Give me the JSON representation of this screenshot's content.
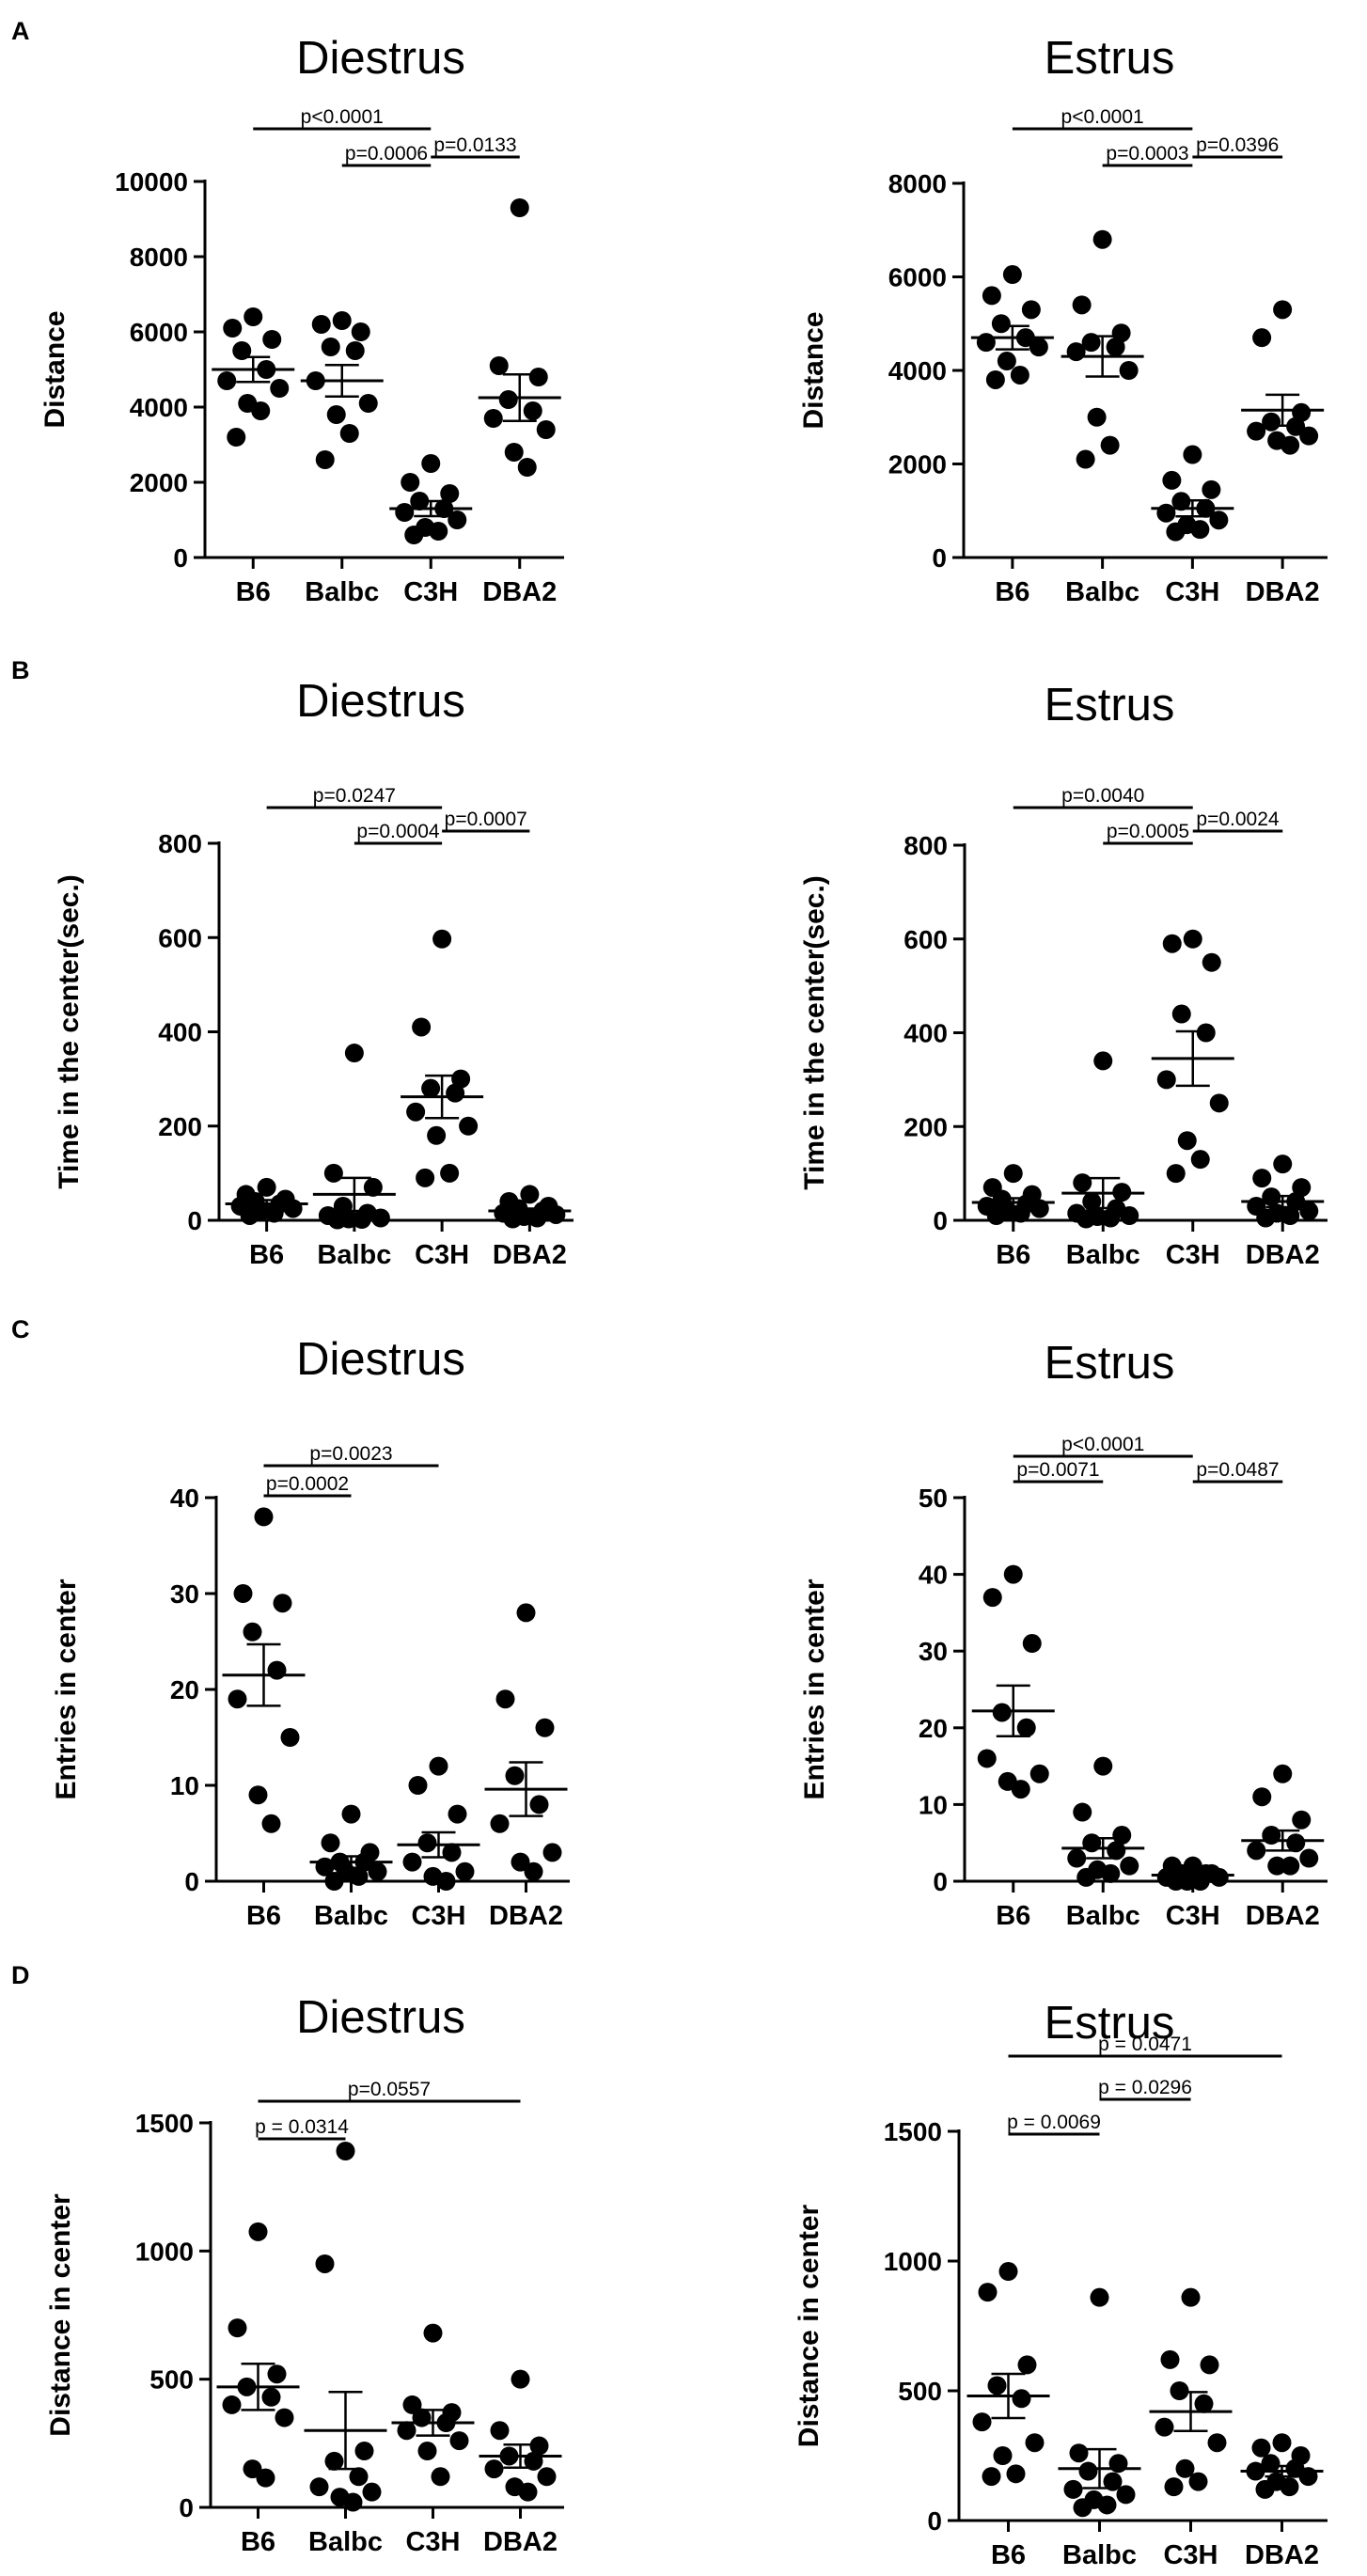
{
  "chart_data": [
    {
      "type": "scatter",
      "panel": "A",
      "title": "Diestrus",
      "ylabel": "Distance",
      "categories": [
        "B6",
        "Balbc",
        "C3H",
        "DBA2"
      ],
      "ylim": [
        0,
        10000
      ],
      "yticks": [
        0,
        2000,
        4000,
        6000,
        8000,
        10000
      ],
      "ytick_labels": [
        "0",
        "2000",
        "4000",
        "6000",
        "8000",
        "10000"
      ],
      "groups": [
        {
          "name": "B6",
          "points": [
            6400,
            6100,
            5800,
            5500,
            5000,
            4700,
            4500,
            4100,
            3900,
            3200
          ],
          "mean": 5000,
          "sem": 330
        },
        {
          "name": "Balbc",
          "points": [
            6300,
            6200,
            6000,
            5600,
            5500,
            4700,
            4100,
            3800,
            3300,
            2600
          ],
          "mean": 4700,
          "sem": 420
        },
        {
          "name": "C3H",
          "points": [
            2500,
            2000,
            1700,
            1500,
            1300,
            1200,
            1000,
            800,
            700,
            600
          ],
          "mean": 1300,
          "sem": 200
        },
        {
          "name": "DBA2",
          "points": [
            9300,
            5100,
            4800,
            4200,
            3900,
            3700,
            3400,
            2800,
            2400
          ],
          "mean": 4250,
          "sem": 620
        }
      ],
      "comparisons": [
        {
          "from": 0,
          "to": 2,
          "label": "p<0.0001"
        },
        {
          "from": 1,
          "to": 2,
          "label": "p=0.0006"
        },
        {
          "from": 2,
          "to": 3,
          "label": "p=0.0133"
        }
      ]
    },
    {
      "type": "scatter",
      "panel": "",
      "title": "Estrus",
      "ylabel": "Distance",
      "categories": [
        "B6",
        "Balbc",
        "C3H",
        "DBA2"
      ],
      "ylim": [
        0,
        8000
      ],
      "yticks": [
        0,
        2000,
        4000,
        6000,
        8000
      ],
      "ytick_labels": [
        "0",
        "2000",
        "4000",
        "6000",
        "8000"
      ],
      "groups": [
        {
          "name": "B6",
          "points": [
            6050,
            5600,
            5300,
            5000,
            4700,
            4600,
            4500,
            4200,
            3900,
            3800
          ],
          "mean": 4700,
          "sem": 250
        },
        {
          "name": "Balbc",
          "points": [
            6800,
            5400,
            4800,
            4600,
            4500,
            4400,
            4000,
            3000,
            2400,
            2100
          ],
          "mean": 4300,
          "sem": 430
        },
        {
          "name": "C3H",
          "points": [
            2200,
            1650,
            1450,
            1200,
            1050,
            950,
            800,
            700,
            600,
            550
          ],
          "mean": 1050,
          "sem": 170
        },
        {
          "name": "DBA2",
          "points": [
            5300,
            4700,
            3100,
            2900,
            2800,
            2700,
            2600,
            2500,
            2400
          ],
          "mean": 3150,
          "sem": 330
        }
      ],
      "comparisons": [
        {
          "from": 0,
          "to": 2,
          "label": "p<0.0001"
        },
        {
          "from": 1,
          "to": 2,
          "label": "p=0.0003"
        },
        {
          "from": 2,
          "to": 3,
          "label": "p=0.0396"
        }
      ]
    },
    {
      "type": "scatter",
      "panel": "B",
      "title": "Diestrus",
      "ylabel": "Time in the center(sec.)",
      "categories": [
        "B6",
        "Balbc",
        "C3H",
        "DBA2"
      ],
      "ylim": [
        0,
        800
      ],
      "yticks": [
        0,
        200,
        400,
        600,
        800
      ],
      "ytick_labels": [
        "0",
        "200",
        "400",
        "600",
        "800"
      ],
      "groups": [
        {
          "name": "B6",
          "points": [
            70,
            55,
            45,
            40,
            35,
            30,
            25,
            20,
            15,
            10
          ],
          "mean": 35,
          "sem": 8
        },
        {
          "name": "Balbc",
          "points": [
            355,
            100,
            70,
            30,
            15,
            10,
            5,
            3,
            2,
            1
          ],
          "mean": 55,
          "sem": 35
        },
        {
          "name": "C3H",
          "points": [
            597,
            410,
            300,
            280,
            270,
            230,
            200,
            180,
            100,
            90
          ],
          "mean": 262,
          "sem": 45
        },
        {
          "name": "DBA2",
          "points": [
            55,
            40,
            30,
            25,
            20,
            15,
            12,
            8,
            5,
            3
          ],
          "mean": 20,
          "sem": 5
        }
      ],
      "comparisons": [
        {
          "from": 0,
          "to": 2,
          "label": "p=0.0247"
        },
        {
          "from": 1,
          "to": 2,
          "label": "p=0.0004"
        },
        {
          "from": 2,
          "to": 3,
          "label": "p=0.0007"
        }
      ]
    },
    {
      "type": "scatter",
      "panel": "",
      "title": "Estrus",
      "ylabel": "Time in the center(sec.)",
      "categories": [
        "B6",
        "Balbc",
        "C3H",
        "DBA2"
      ],
      "ylim": [
        0,
        800
      ],
      "yticks": [
        0,
        200,
        400,
        600,
        800
      ],
      "ytick_labels": [
        "0",
        "200",
        "400",
        "600",
        "800"
      ],
      "groups": [
        {
          "name": "B6",
          "points": [
            100,
            70,
            55,
            45,
            35,
            30,
            25,
            20,
            15,
            10
          ],
          "mean": 38,
          "sem": 9
        },
        {
          "name": "Balbc",
          "points": [
            340,
            80,
            60,
            40,
            25,
            15,
            10,
            8,
            5,
            3
          ],
          "mean": 58,
          "sem": 32
        },
        {
          "name": "C3H",
          "points": [
            600,
            590,
            550,
            440,
            400,
            300,
            250,
            170,
            130,
            100
          ],
          "mean": 345,
          "sem": 58
        },
        {
          "name": "DBA2",
          "points": [
            120,
            90,
            70,
            50,
            40,
            30,
            20,
            15,
            10,
            5
          ],
          "mean": 40,
          "sem": 12
        }
      ],
      "comparisons": [
        {
          "from": 0,
          "to": 2,
          "label": "p=0.0040"
        },
        {
          "from": 1,
          "to": 2,
          "label": "p=0.0005"
        },
        {
          "from": 2,
          "to": 3,
          "label": "p=0.0024"
        }
      ]
    },
    {
      "type": "scatter",
      "panel": "C",
      "title": "Diestrus",
      "ylabel": "Entries in center",
      "categories": [
        "B6",
        "Balbc",
        "C3H",
        "DBA2"
      ],
      "ylim": [
        0,
        40
      ],
      "yticks": [
        0,
        10,
        20,
        30,
        40
      ],
      "ytick_labels": [
        "0",
        "10",
        "20",
        "30",
        "40"
      ],
      "groups": [
        {
          "name": "B6",
          "points": [
            38,
            30,
            29,
            26,
            22,
            19,
            15,
            9,
            6
          ],
          "mean": 21.5,
          "sem": 3.2
        },
        {
          "name": "Balbc",
          "points": [
            7,
            4,
            3,
            2,
            2,
            1.5,
            1,
            1,
            0.5,
            0
          ],
          "mean": 2,
          "sem": 0.6
        },
        {
          "name": "C3H",
          "points": [
            12,
            10,
            7,
            4,
            3,
            2,
            1,
            0.5,
            0
          ],
          "mean": 3.8,
          "sem": 1.3
        },
        {
          "name": "DBA2",
          "points": [
            28,
            19,
            16,
            11,
            8,
            6,
            3,
            2,
            1
          ],
          "mean": 9.6,
          "sem": 2.8
        }
      ],
      "comparisons": [
        {
          "from": 0,
          "to": 1,
          "label": "p=0.0002"
        },
        {
          "from": 0,
          "to": 2,
          "label": "p=0.0023"
        }
      ]
    },
    {
      "type": "scatter",
      "panel": "",
      "title": "Estrus",
      "ylabel": "Entries in center",
      "categories": [
        "B6",
        "Balbc",
        "C3H",
        "DBA2"
      ],
      "ylim": [
        0,
        50
      ],
      "yticks": [
        0,
        10,
        20,
        30,
        40,
        50
      ],
      "ytick_labels": [
        "0",
        "10",
        "20",
        "30",
        "40",
        "50"
      ],
      "groups": [
        {
          "name": "B6",
          "points": [
            40,
            37,
            31,
            22,
            20,
            16,
            14,
            13,
            12
          ],
          "mean": 22.2,
          "sem": 3.3
        },
        {
          "name": "Balbc",
          "points": [
            15,
            9,
            6,
            5,
            4,
            3,
            2,
            1.5,
            1,
            0.5
          ],
          "mean": 4.3,
          "sem": 1.3
        },
        {
          "name": "C3H",
          "points": [
            2,
            2,
            1,
            1,
            1,
            0.5,
            0.5,
            0,
            0,
            0
          ],
          "mean": 0.8,
          "sem": 0.3
        },
        {
          "name": "DBA2",
          "points": [
            14,
            11,
            8,
            6,
            5,
            4,
            3,
            2,
            2
          ],
          "mean": 5.3,
          "sem": 1.3
        }
      ],
      "comparisons": [
        {
          "from": 0,
          "to": 1,
          "label": "p=0.0071"
        },
        {
          "from": 0,
          "to": 2,
          "label": "p<0.0001"
        },
        {
          "from": 2,
          "to": 3,
          "label": "p=0.0487"
        }
      ]
    },
    {
      "type": "scatter",
      "panel": "D",
      "title": "Diestrus",
      "ylabel": "Distance in center",
      "categories": [
        "B6",
        "Balbc",
        "C3H",
        "DBA2"
      ],
      "ylim": [
        0,
        1500
      ],
      "yticks": [
        0,
        500,
        1000,
        1500
      ],
      "ytick_labels": [
        "0",
        "500",
        "1000",
        "1500"
      ],
      "groups": [
        {
          "name": "B6",
          "points": [
            1075,
            700,
            520,
            470,
            430,
            400,
            350,
            150,
            115
          ],
          "mean": 470,
          "sem": 90
        },
        {
          "name": "Balbc",
          "points": [
            1390,
            950,
            220,
            180,
            120,
            80,
            60,
            40,
            20
          ],
          "mean": 300,
          "sem": 150
        },
        {
          "name": "C3H",
          "points": [
            680,
            400,
            370,
            350,
            330,
            300,
            260,
            220,
            120
          ],
          "mean": 330,
          "sem": 50
        },
        {
          "name": "DBA2",
          "points": [
            500,
            300,
            240,
            200,
            180,
            150,
            120,
            80,
            60
          ],
          "mean": 200,
          "sem": 45
        }
      ],
      "comparisons": [
        {
          "from": 0,
          "to": 1,
          "label": "p = 0.0314"
        },
        {
          "from": 0,
          "to": 3,
          "label": "p=0.0557"
        }
      ]
    },
    {
      "type": "scatter",
      "panel": "",
      "title": "Estrus",
      "ylabel": "Distance in center",
      "categories": [
        "B6",
        "Balbc",
        "C3H",
        "DBA2"
      ],
      "ylim": [
        0,
        1500
      ],
      "yticks": [
        0,
        500,
        1000,
        1500
      ],
      "ytick_labels": [
        "0",
        "500",
        "1000",
        "1500"
      ],
      "groups": [
        {
          "name": "B6",
          "points": [
            960,
            880,
            600,
            520,
            470,
            380,
            300,
            250,
            180,
            170
          ],
          "mean": 480,
          "sem": 85
        },
        {
          "name": "Balbc",
          "points": [
            860,
            260,
            220,
            190,
            150,
            120,
            100,
            80,
            60,
            50
          ],
          "mean": 200,
          "sem": 75
        },
        {
          "name": "C3H",
          "points": [
            860,
            620,
            600,
            500,
            450,
            360,
            300,
            200,
            150,
            130
          ],
          "mean": 420,
          "sem": 75
        },
        {
          "name": "DBA2",
          "points": [
            300,
            280,
            250,
            220,
            200,
            190,
            170,
            150,
            130,
            120
          ],
          "mean": 190,
          "sem": 20
        }
      ],
      "comparisons": [
        {
          "from": 0,
          "to": 1,
          "label": "p = 0.0069"
        },
        {
          "from": 1,
          "to": 2,
          "label": "p = 0.0296"
        },
        {
          "from": 0,
          "to": 3,
          "label": "p = 0.0471"
        }
      ]
    }
  ]
}
